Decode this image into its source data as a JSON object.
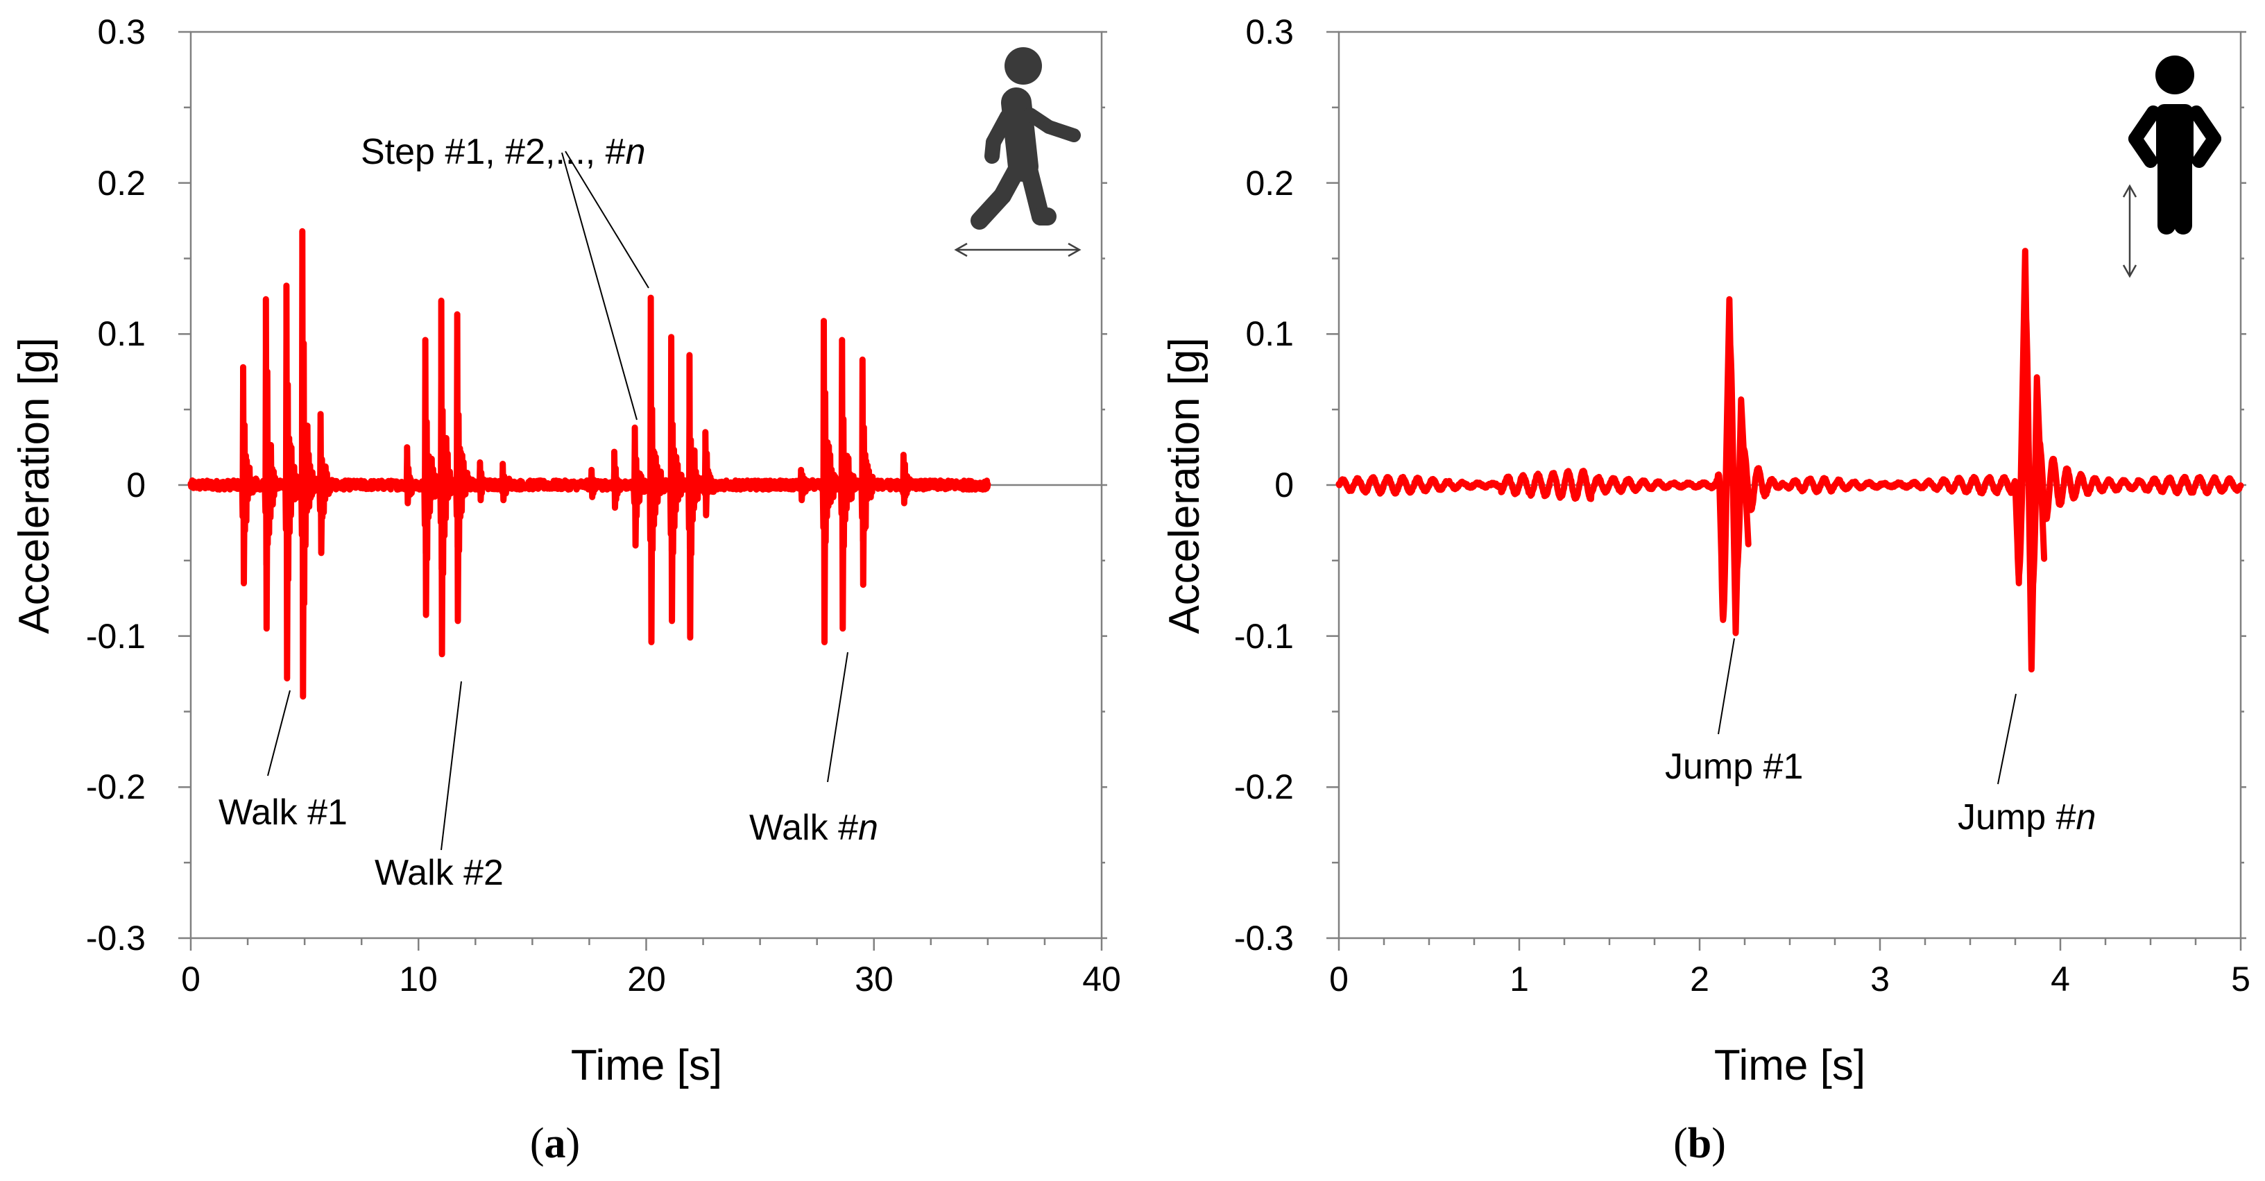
{
  "colors": {
    "signal": "#ff0000",
    "axis": "#808080",
    "icon_walk": "#3a3a3a",
    "icon_stand": "#000000"
  },
  "chart_data": [
    {
      "type": "line",
      "panel_label": "a",
      "title": "",
      "xlabel": "Time [s]",
      "ylabel": "Acceleration [g]",
      "xlim": [
        0,
        40
      ],
      "ylim": [
        -0.3,
        0.3
      ],
      "xticks": [
        "0",
        "10",
        "20",
        "30",
        "40"
      ],
      "yticks": [
        "-0.3",
        "-0.2",
        "-0.1",
        "0",
        "0.1",
        "0.2",
        "0.3"
      ],
      "grid": false,
      "icon": "walking-person-icon",
      "series": [
        {
          "name": "acceleration",
          "noise_amplitude": 0.003,
          "x_range": [
            0,
            35
          ],
          "peaks": [
            {
              "t": 2.3,
              "up": 0.078,
              "down": -0.065
            },
            {
              "t": 3.3,
              "up": 0.123,
              "down": -0.095
            },
            {
              "t": 4.2,
              "up": 0.132,
              "down": -0.128
            },
            {
              "t": 4.9,
              "up": 0.168,
              "down": -0.14
            },
            {
              "t": 5.7,
              "up": 0.047,
              "down": -0.045
            },
            {
              "t": 9.5,
              "up": 0.025,
              "down": -0.012
            },
            {
              "t": 10.3,
              "up": 0.096,
              "down": -0.086
            },
            {
              "t": 11.0,
              "up": 0.122,
              "down": -0.112
            },
            {
              "t": 11.7,
              "up": 0.113,
              "down": -0.09
            },
            {
              "t": 12.7,
              "up": 0.015,
              "down": -0.01
            },
            {
              "t": 13.7,
              "up": 0.014,
              "down": -0.01
            },
            {
              "t": 17.6,
              "up": 0.01,
              "down": -0.008
            },
            {
              "t": 18.6,
              "up": 0.022,
              "down": -0.015
            },
            {
              "t": 19.5,
              "up": 0.038,
              "down": -0.04
            },
            {
              "t": 20.2,
              "up": 0.124,
              "down": -0.104
            },
            {
              "t": 21.1,
              "up": 0.098,
              "down": -0.09
            },
            {
              "t": 21.9,
              "up": 0.086,
              "down": -0.101
            },
            {
              "t": 22.6,
              "up": 0.035,
              "down": -0.02
            },
            {
              "t": 26.8,
              "up": 0.01,
              "down": -0.01
            },
            {
              "t": 27.8,
              "up": 0.108,
              "down": -0.104
            },
            {
              "t": 28.6,
              "up": 0.096,
              "down": -0.095
            },
            {
              "t": 29.5,
              "up": 0.083,
              "down": -0.066
            },
            {
              "t": 31.3,
              "up": 0.02,
              "down": -0.012
            }
          ]
        }
      ],
      "annotations": [
        {
          "text": "Step #1, #2,..., #",
          "italic": "n"
        },
        {
          "text": "Walk #1",
          "italic": ""
        },
        {
          "text": "Walk #2",
          "italic": ""
        },
        {
          "text": "Walk #",
          "italic": "n"
        }
      ]
    },
    {
      "type": "line",
      "panel_label": "b",
      "title": "",
      "xlabel": "Time [s]",
      "ylabel": "Acceleration [g]",
      "xlim": [
        0,
        5
      ],
      "ylim": [
        -0.3,
        0.3
      ],
      "xticks": [
        "0",
        "1",
        "2",
        "3",
        "4",
        "5"
      ],
      "yticks": [
        "-0.3",
        "-0.2",
        "-0.1",
        "0",
        "0.1",
        "0.2",
        "0.3"
      ],
      "grid": false,
      "icon": "standing-person-icon",
      "series": [
        {
          "name": "acceleration",
          "noise_amplitude": 0.005,
          "x_range": [
            0,
            5
          ],
          "jumps": [
            {
              "t": 2.13,
              "min1": -0.088,
              "max": 0.123,
              "min2": -0.098,
              "decay": 0.06
            },
            {
              "t": 3.77,
              "min1": -0.065,
              "max": 0.155,
              "min2": -0.122,
              "decay": 0.06
            }
          ]
        }
      ],
      "annotations": [
        {
          "text": "Jump #1",
          "italic": ""
        },
        {
          "text": "Jump #",
          "italic": "n"
        }
      ]
    }
  ]
}
